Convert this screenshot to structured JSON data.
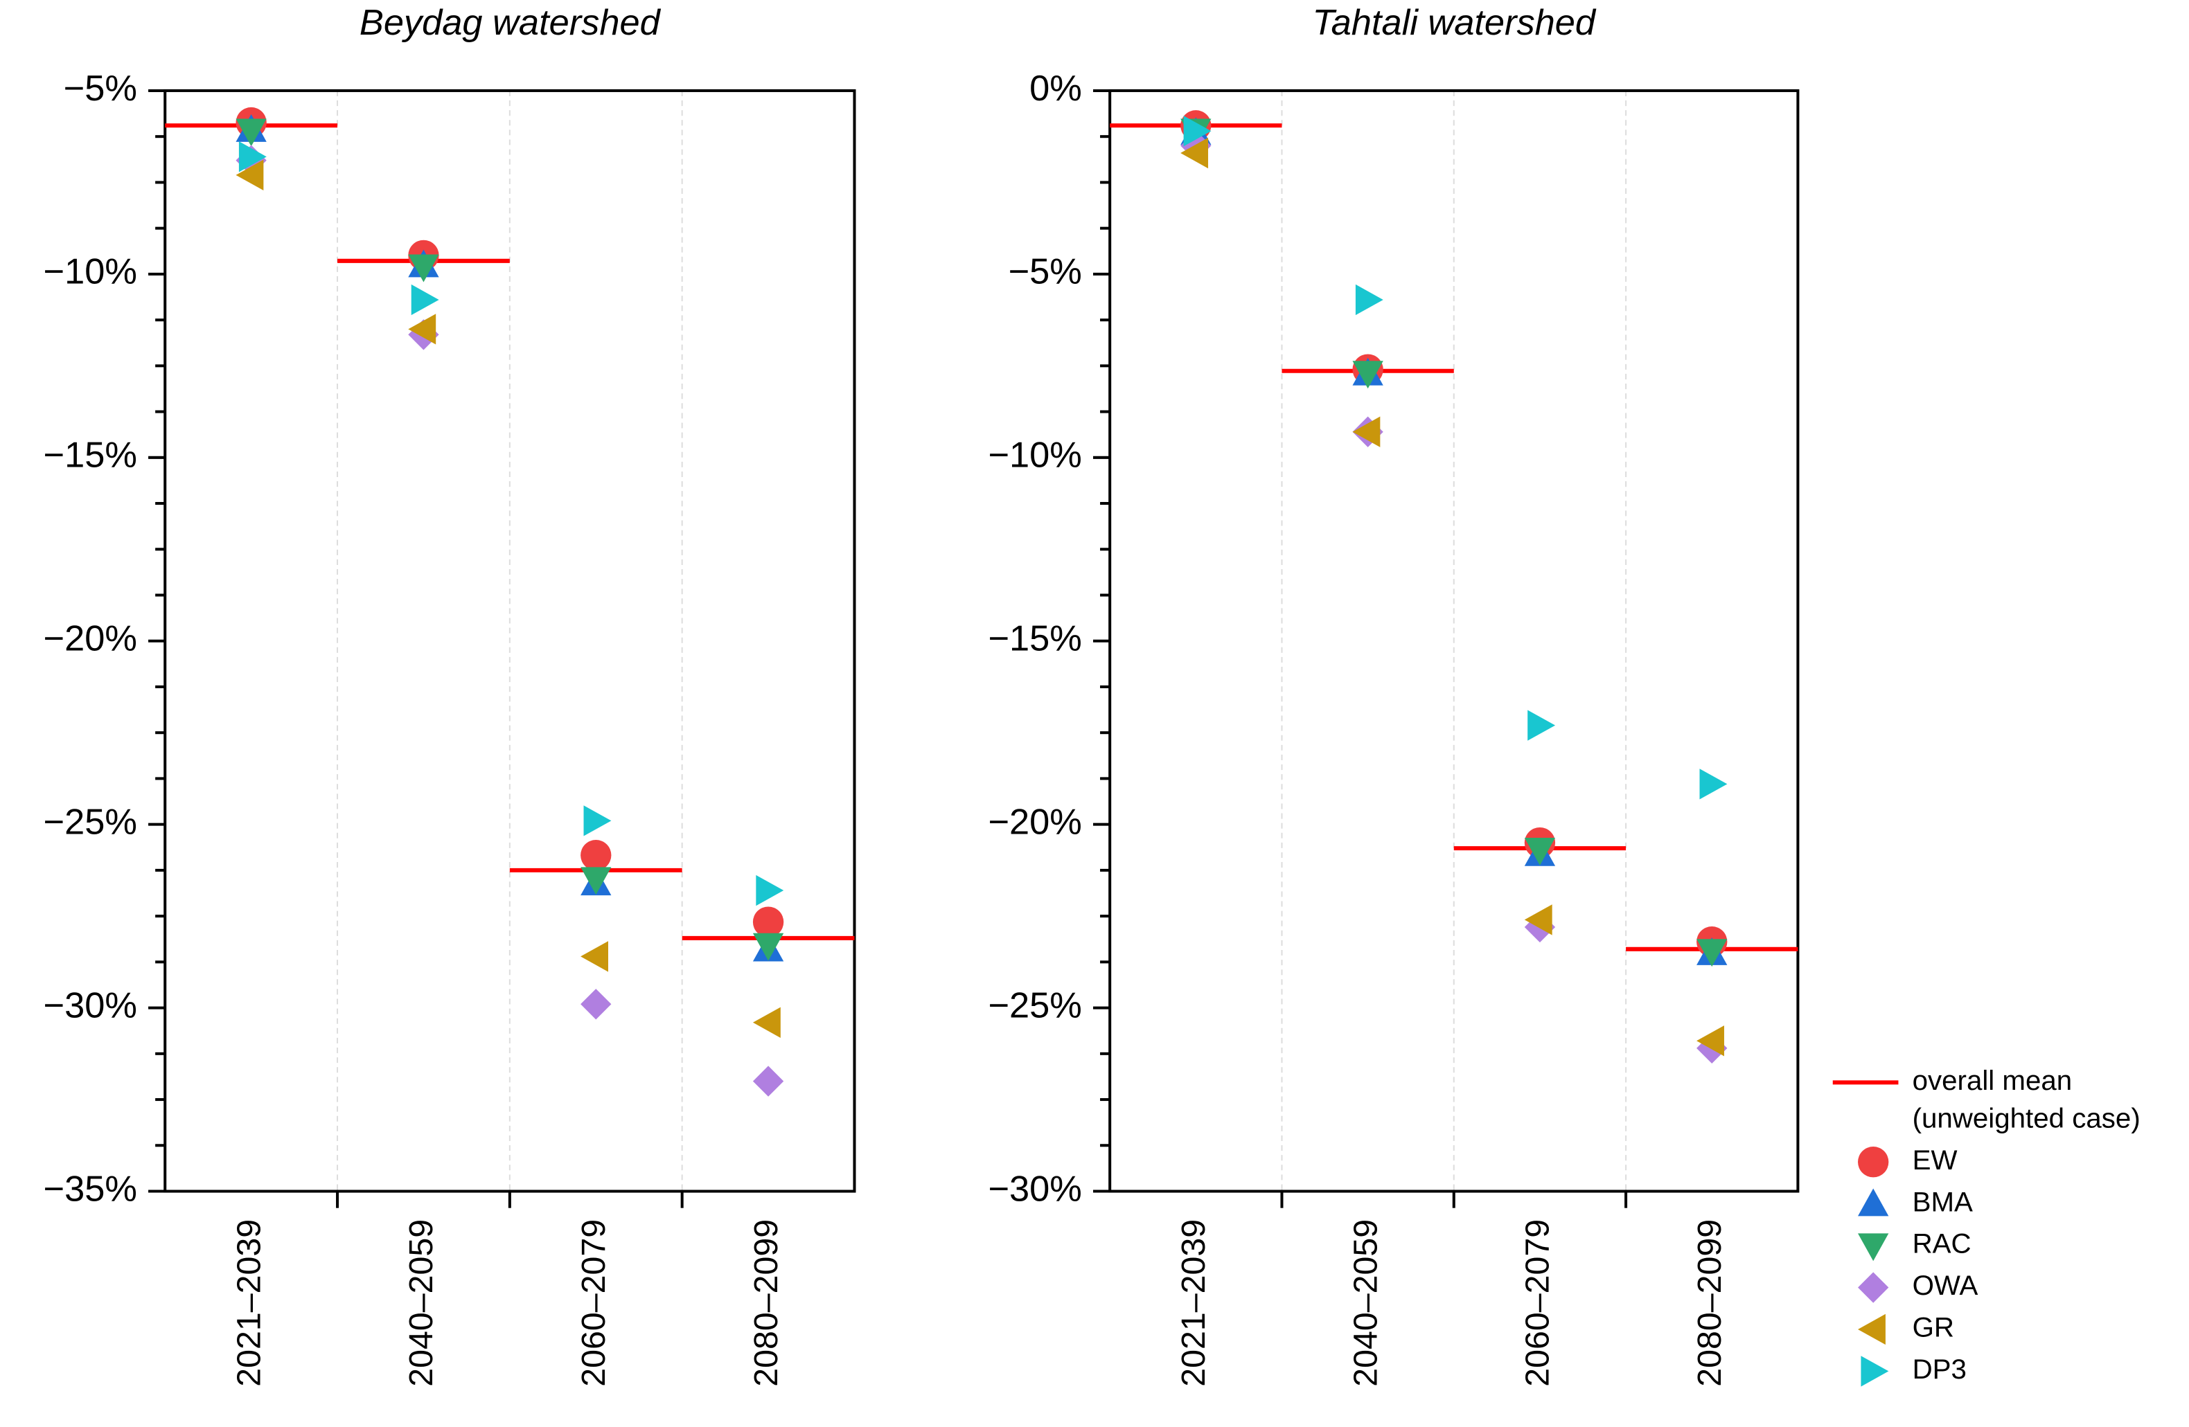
{
  "chart_data": [
    {
      "type": "scatter",
      "title": "Beydag watershed",
      "categories": [
        "2021–2039",
        "2040–2059",
        "2060–2079",
        "2080–2099"
      ],
      "ylim": [
        -35,
        -5
      ],
      "yticks": [
        {
          "value": -5,
          "label": "−5%"
        },
        {
          "value": -10,
          "label": "−10%"
        },
        {
          "value": -15,
          "label": "−15%"
        },
        {
          "value": -20,
          "label": "−20%"
        },
        {
          "value": -25,
          "label": "−25%"
        },
        {
          "value": -30,
          "label": "−30%"
        },
        {
          "value": -35,
          "label": "−35%"
        }
      ],
      "yminorticks": [
        -6.25,
        -7.5,
        -8.75,
        -11.25,
        -12.5,
        -13.75,
        -16.25,
        -17.5,
        -18.75,
        -21.25,
        -22.5,
        -23.75,
        -26.25,
        -27.5,
        -28.75,
        -31.25,
        -32.5,
        -33.75
      ],
      "grid": "x",
      "series": [
        {
          "name": "overall mean",
          "subname": "(unweighted case)",
          "color": "#ff0000",
          "marker": "hline",
          "values": [
            -5.95,
            -9.64,
            -26.25,
            -28.1
          ]
        },
        {
          "name": "EW",
          "color": "#ef4040",
          "marker": "circle",
          "values": [
            -5.87,
            -9.49,
            -25.84,
            -27.66
          ]
        },
        {
          "name": "BMA",
          "color": "#1f6fd6",
          "marker": "triangle-up",
          "values": [
            -6.06,
            -9.75,
            -26.6,
            -28.4
          ]
        },
        {
          "name": "RAC",
          "color": "#2ea86a",
          "marker": "triangle-down",
          "values": [
            -6.1,
            -9.8,
            -26.5,
            -28.3
          ]
        },
        {
          "name": "OWA",
          "color": "#b07fe0",
          "marker": "diamond",
          "values": [
            -6.9,
            -11.65,
            -29.9,
            -32.0
          ]
        },
        {
          "name": "GR",
          "color": "#c9960c",
          "marker": "triangle-left",
          "values": [
            -7.3,
            -11.5,
            -28.6,
            -30.4
          ]
        },
        {
          "name": "DP3",
          "color": "#19c6d0",
          "marker": "triangle-right",
          "values": [
            -6.8,
            -10.7,
            -24.9,
            -26.8
          ]
        }
      ]
    },
    {
      "type": "scatter",
      "title": "Tahtali watershed",
      "categories": [
        "2021–2039",
        "2040–2059",
        "2060–2079",
        "2080–2099"
      ],
      "ylim": [
        -30,
        0
      ],
      "yticks": [
        {
          "value": 0,
          "label": "0%"
        },
        {
          "value": -5,
          "label": "−5%"
        },
        {
          "value": -10,
          "label": "−10%"
        },
        {
          "value": -15,
          "label": "−15%"
        },
        {
          "value": -20,
          "label": "−20%"
        },
        {
          "value": -25,
          "label": "−25%"
        },
        {
          "value": -30,
          "label": "−30%"
        }
      ],
      "yminorticks": [
        -1.25,
        -2.5,
        -3.75,
        -6.25,
        -7.5,
        -8.75,
        -11.25,
        -12.5,
        -13.75,
        -16.25,
        -17.5,
        -18.75,
        -21.25,
        -22.5,
        -23.75,
        -26.25,
        -27.5,
        -28.75
      ],
      "grid": "x",
      "legend": "right",
      "series": [
        {
          "name": "overall mean",
          "subname": "(unweighted case)",
          "color": "#ff0000",
          "marker": "hline",
          "values": [
            -0.95,
            -7.64,
            -20.65,
            -23.4
          ]
        },
        {
          "name": "EW",
          "color": "#ef4040",
          "marker": "circle",
          "values": [
            -0.95,
            -7.6,
            -20.5,
            -23.2
          ]
        },
        {
          "name": "BMA",
          "color": "#1f6fd6",
          "marker": "triangle-up",
          "values": [
            -1.14,
            -7.7,
            -20.8,
            -23.5
          ]
        },
        {
          "name": "RAC",
          "color": "#2ea86a",
          "marker": "triangle-down",
          "values": [
            -1.1,
            -7.7,
            -20.7,
            -23.46
          ]
        },
        {
          "name": "OWA",
          "color": "#b07fe0",
          "marker": "diamond",
          "values": [
            -1.5,
            -9.3,
            -22.8,
            -26.1
          ]
        },
        {
          "name": "GR",
          "color": "#c9960c",
          "marker": "triangle-left",
          "values": [
            -1.7,
            -9.3,
            -22.6,
            -25.9
          ]
        },
        {
          "name": "DP3",
          "color": "#19c6d0",
          "marker": "triangle-right",
          "values": [
            -1.1,
            -5.7,
            -17.3,
            -18.9
          ]
        }
      ]
    }
  ]
}
